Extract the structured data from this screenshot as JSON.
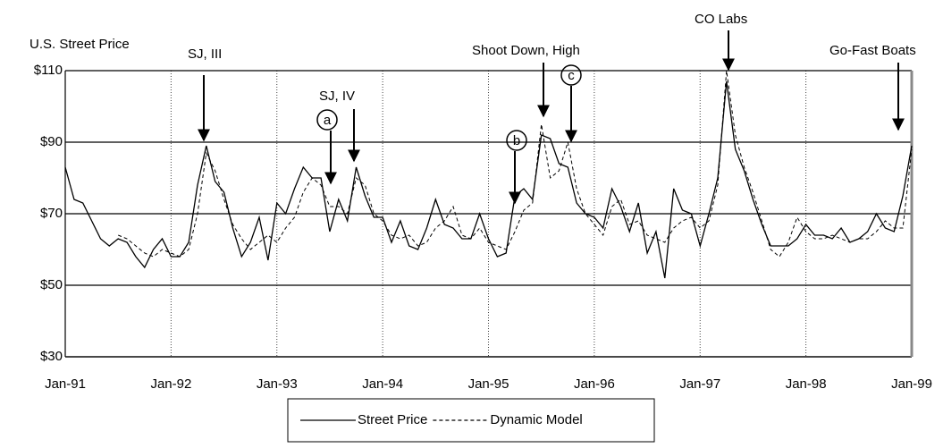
{
  "chart_data": {
    "type": "line",
    "ylabel": "U.S. Street Price",
    "categories": [
      "Jan-91",
      null,
      null,
      null,
      null,
      null,
      null,
      null,
      null,
      null,
      null,
      null,
      "Jan-92",
      null,
      null,
      null,
      null,
      null,
      null,
      null,
      null,
      null,
      null,
      null,
      "Jan-93",
      null,
      null,
      null,
      null,
      null,
      null,
      null,
      null,
      null,
      null,
      null,
      "Jan-94",
      null,
      null,
      null,
      null,
      null,
      null,
      null,
      null,
      null,
      null,
      null,
      "Jan-95",
      null,
      null,
      null,
      null,
      null,
      null,
      null,
      null,
      null,
      null,
      null,
      "Jan-96",
      null,
      null,
      null,
      null,
      null,
      null,
      null,
      null,
      null,
      null,
      null,
      "Jan-97",
      null,
      null,
      null,
      null,
      null,
      null,
      null,
      null,
      null,
      null,
      null,
      "Jan-98",
      null,
      null,
      null,
      null,
      null,
      null,
      null,
      null,
      null,
      null,
      null,
      "Jan-99"
    ],
    "series": [
      {
        "name": "Street Price",
        "color": "#000000",
        "style": "solid",
        "values": [
          83,
          74,
          73,
          68,
          63,
          61,
          63,
          62,
          58,
          55,
          60,
          63,
          58,
          58,
          62,
          78,
          89,
          79,
          76,
          66,
          58,
          62,
          69,
          57,
          73,
          70,
          77,
          83,
          80,
          80,
          65,
          74,
          68,
          83,
          75,
          69,
          69,
          62,
          68,
          61,
          60,
          66,
          74,
          67,
          66,
          63,
          63,
          70,
          63,
          58,
          59,
          75,
          77,
          74,
          92,
          91,
          84,
          83,
          73,
          70,
          69,
          66,
          77,
          72,
          65,
          73,
          59,
          65,
          52,
          77,
          71,
          70,
          61,
          70,
          80,
          107,
          88,
          82,
          74,
          67,
          61,
          61,
          61,
          63,
          67,
          64,
          64,
          63,
          66,
          62,
          63,
          65,
          70,
          66,
          65,
          75,
          89
        ]
      },
      {
        "name": "Dynamic Model",
        "color": "#000000",
        "style": "dashed",
        "values": [
          null,
          null,
          null,
          null,
          null,
          null,
          64,
          63,
          61,
          59,
          58,
          60,
          59,
          58,
          60,
          70,
          87,
          82,
          74,
          67,
          63,
          60,
          62,
          64,
          62,
          66,
          69,
          76,
          80,
          78,
          72,
          72,
          70,
          80,
          78,
          70,
          68,
          64,
          63,
          64,
          61,
          62,
          66,
          68,
          72,
          64,
          63,
          66,
          62,
          61,
          60,
          65,
          71,
          73,
          95,
          80,
          82,
          90,
          77,
          70,
          67,
          64,
          72,
          74,
          67,
          68,
          64,
          63,
          62,
          66,
          68,
          69,
          66,
          68,
          78,
          110,
          92,
          83,
          76,
          68,
          60,
          58,
          62,
          69,
          65,
          63,
          63,
          64,
          63,
          62,
          63,
          63,
          65,
          68,
          66,
          66,
          88
        ]
      }
    ],
    "ylim": [
      30,
      110
    ],
    "yticks": [
      {
        "value": 30,
        "label": "$30"
      },
      {
        "value": 50,
        "label": "$50"
      },
      {
        "value": 70,
        "label": "$70"
      },
      {
        "value": 90,
        "label": "$90"
      },
      {
        "value": 110,
        "label": "$110"
      }
    ],
    "grid": true,
    "legend": "bottom",
    "annotations": [
      "SJ, III",
      "SJ, IV",
      "a",
      "b",
      "Shoot Down, High",
      "c",
      "CO Labs",
      "Go-Fast Boats"
    ]
  }
}
